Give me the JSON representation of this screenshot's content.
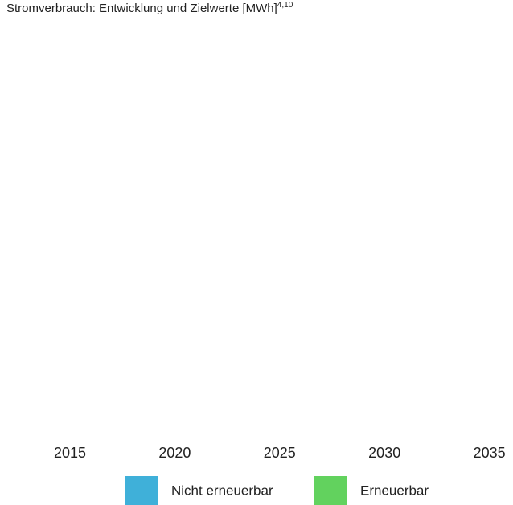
{
  "chart_data": {
    "type": "bar",
    "stacked": true,
    "title": "Stromverbrauch: Entwicklung und Zielwerte [MWh]",
    "title_superscript": "4,10",
    "categories": [
      "2015",
      "2020",
      "2025",
      "2030",
      "2035"
    ],
    "series": [
      {
        "name": "Nicht erneuerbar",
        "color": "#3fb0d9",
        "values": [
          null,
          null,
          null,
          null,
          null
        ]
      },
      {
        "name": "Erneuerbar",
        "color": "#62d25e",
        "values": [
          null,
          null,
          null,
          null,
          null
        ]
      }
    ],
    "legend": "bottom"
  }
}
